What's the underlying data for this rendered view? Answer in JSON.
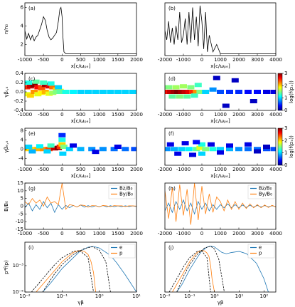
{
  "chart_data": [
    {
      "type": "line",
      "label": "(a)",
      "ylabel": "n/n₀",
      "xlabel": "x[c/ωₚₑ]",
      "xlim": [
        -1000,
        2000
      ],
      "xticks": [
        -1000,
        -500,
        0,
        500,
        1000,
        1500,
        2000
      ],
      "ylim": [
        0.8,
        6.5
      ],
      "yticks": [
        2,
        4,
        6
      ],
      "x": [
        -1000,
        -950,
        -900,
        -850,
        -800,
        -750,
        -700,
        -650,
        -600,
        -550,
        -500,
        -450,
        -400,
        -350,
        -300,
        -250,
        -200,
        -150,
        -100,
        -60,
        -30,
        0,
        20,
        50,
        100,
        200,
        500,
        1000,
        1500,
        2000
      ],
      "series": [
        {
          "color": "#000000",
          "values": [
            3.5,
            2.6,
            3.2,
            2.5,
            3.0,
            2.4,
            2.8,
            3.0,
            3.6,
            4.2,
            5.0,
            4.6,
            3.5,
            2.8,
            2.5,
            2.7,
            3.0,
            3.3,
            4.5,
            5.8,
            6.0,
            5.0,
            3.0,
            1.2,
            1.0,
            1.0,
            1.0,
            1.0,
            1.0,
            1.0
          ]
        }
      ]
    },
    {
      "type": "line",
      "label": "(b)",
      "xlabel": "x[c/ωₚₑ]",
      "xlim": [
        -2000,
        4000
      ],
      "xticks": [
        -2000,
        -1000,
        0,
        1000,
        2000,
        3000,
        4000
      ],
      "ylim": [
        0.8,
        6.5
      ],
      "x": [
        -2000,
        -1900,
        -1800,
        -1700,
        -1600,
        -1500,
        -1400,
        -1300,
        -1200,
        -1100,
        -1000,
        -900,
        -800,
        -700,
        -600,
        -500,
        -400,
        -300,
        -200,
        -100,
        0,
        100,
        200,
        300,
        400,
        600,
        800,
        1000,
        1500,
        2000,
        3000,
        4000
      ],
      "series": [
        {
          "color": "#000000",
          "values": [
            3.5,
            2.5,
            4.5,
            2.2,
            3.8,
            2.0,
            4.0,
            2.5,
            5.5,
            2.2,
            3.0,
            4.8,
            2.0,
            5.5,
            2.2,
            6.0,
            2.5,
            5.0,
            1.8,
            6.2,
            4.5,
            1.5,
            5.5,
            1.2,
            3.0,
            1.2,
            2.0,
            1.0,
            1.0,
            1.0,
            1.0,
            1.0
          ]
        }
      ]
    },
    {
      "type": "heatmap",
      "label": "(c)",
      "ylabel": "γβᵢ,ₓ",
      "xlabel": "x[c/ωₚₑ]",
      "xlim": [
        -1000,
        2000
      ],
      "xticks": [
        -1000,
        -500,
        0,
        500,
        1000,
        1500,
        2000
      ],
      "ylim": [
        -0.4,
        0.4
      ],
      "yticks": [
        -0.4,
        -0.2,
        {
          "value": 0,
          "label": "0.0"
        },
        0.2,
        0.4
      ],
      "x": [
        -950,
        -850,
        -750,
        -650,
        -550,
        -450,
        -350,
        -250,
        -150,
        -50,
        -950,
        -850,
        -750,
        -650,
        -550,
        -450,
        -350,
        -250,
        -150,
        -50,
        -900,
        -700,
        -500,
        -300,
        -100,
        100,
        300,
        500,
        700,
        900,
        1100,
        1300,
        1500,
        1700,
        1900
      ],
      "y": [
        0.1,
        0.12,
        0.15,
        0.1,
        0.08,
        0.15,
        0.12,
        0.1,
        0.05,
        0.02,
        -0.05,
        -0.08,
        0.0,
        -0.05,
        -0.02,
        0.0,
        -0.04,
        -0.02,
        0.0,
        0.0,
        0.2,
        0.22,
        0.2,
        0.18,
        0.1,
        0,
        0,
        0,
        0,
        0,
        0,
        0,
        0,
        0,
        0
      ],
      "values": [
        2.5,
        2.8,
        3,
        2.6,
        2.4,
        2.9,
        2.7,
        2.3,
        2,
        1.8,
        1.8,
        2,
        2.2,
        1.8,
        1.9,
        2.1,
        1.8,
        1.6,
        1.5,
        1.4,
        1.2,
        1.4,
        1.3,
        1.2,
        1,
        1.2,
        1.1,
        1,
        1,
        1,
        1,
        1,
        1,
        1,
        1
      ]
    },
    {
      "type": "heatmap",
      "label": "(d)",
      "xlabel": "x[c/ωₚₑ]",
      "xlim": [
        -2000,
        4000
      ],
      "xticks": [
        -2000,
        -1000,
        0,
        1000,
        2000,
        3000,
        4000
      ],
      "ylim": [
        -0.4,
        0.4
      ],
      "colorbar": {
        "label": "log(f(pₓ))",
        "lim": [
          0,
          3
        ],
        "ticks": [
          0,
          1,
          2,
          3
        ]
      },
      "x": [
        -1900,
        -1700,
        -1500,
        -1300,
        -1100,
        -900,
        -700,
        -500,
        -300,
        -100,
        -1800,
        -1400,
        -1000,
        -600,
        -200,
        -1600,
        -1200,
        -800,
        -400,
        200,
        600,
        1000,
        1500,
        2000,
        2500,
        3000,
        3500,
        3900,
        800,
        1800,
        2800,
        1300
      ],
      "y": [
        0,
        0,
        0,
        0,
        0,
        0,
        0,
        0,
        0,
        0,
        0.1,
        0.1,
        0.12,
        0.1,
        0.15,
        -0.1,
        -0.1,
        -0.1,
        -0.08,
        0,
        0.05,
        0,
        0,
        0,
        0,
        0,
        0,
        0,
        0.3,
        0.25,
        -0.2,
        -0.3
      ],
      "values": [
        2.6,
        2.8,
        2.9,
        3,
        2.9,
        2.8,
        2.7,
        2.5,
        2.2,
        1.5,
        1.5,
        1.6,
        1.6,
        1.5,
        1.3,
        1.4,
        1.5,
        1.4,
        1.3,
        1,
        0.8,
        0.6,
        0.5,
        0.5,
        0.4,
        0.4,
        0.3,
        0.3,
        0.2,
        0.2,
        0.2,
        0.2
      ]
    },
    {
      "type": "heatmap",
      "label": "(e)",
      "ylabel": "γβₑ,ₓ",
      "xlabel": "x[c/ωₚₑ]",
      "xlim": [
        -1000,
        2000
      ],
      "xticks": [
        -1000,
        -500,
        0,
        500,
        1000,
        1500,
        2000
      ],
      "ylim": [
        -7,
        9
      ],
      "yticks": [
        -4,
        0,
        4,
        8
      ],
      "x": [
        -950,
        -800,
        -650,
        -500,
        -350,
        -200,
        -100,
        -50,
        0,
        0,
        0,
        50,
        20,
        -900,
        -600,
        -300,
        -800,
        -400,
        200,
        500,
        800,
        1100,
        1400,
        1700,
        1950,
        300,
        900,
        1500
      ],
      "y": [
        0,
        0,
        0,
        0,
        0,
        0.3,
        0.5,
        1,
        2,
        4,
        6,
        1,
        -2,
        1,
        1.2,
        1.5,
        -1,
        -1,
        0,
        0,
        0,
        0,
        0,
        0,
        0,
        1.5,
        -1.2,
        1
      ],
      "values": [
        2,
        2,
        2.1,
        2.2,
        2.4,
        2.8,
        3,
        2.5,
        2,
        1.2,
        0.5,
        1.5,
        1,
        1,
        1.1,
        1.3,
        0.9,
        1,
        1,
        0.9,
        0.8,
        0.8,
        0.7,
        0.7,
        0.6,
        0.3,
        0.3,
        0.3
      ]
    },
    {
      "type": "heatmap",
      "label": "(f)",
      "xlabel": "x[c/ωₚₑ]",
      "xlim": [
        -2000,
        4000
      ],
      "xticks": [
        -2000,
        -1000,
        0,
        1000,
        2000,
        3000,
        4000
      ],
      "ylim": [
        -7,
        9
      ],
      "colorbar": {
        "label": "log(f(pₓ))",
        "lim": [
          0,
          3
        ],
        "ticks": [
          0,
          1,
          2,
          3
        ]
      },
      "x": [
        -1900,
        -1500,
        -1100,
        -700,
        -300,
        -100,
        0,
        0,
        200,
        600,
        1000,
        1500,
        2000,
        2500,
        3000,
        3500,
        3900,
        -1700,
        -900,
        -300,
        500,
        1500,
        2500,
        3500,
        -1300,
        -500,
        1000,
        3000
      ],
      "y": [
        0,
        0,
        0,
        0,
        0,
        0.5,
        2,
        -2,
        0,
        0,
        0,
        0,
        0,
        0,
        0,
        0,
        0,
        2,
        2.5,
        3,
        2,
        1.5,
        2,
        1,
        -2,
        -2.5,
        -1.5,
        -1
      ],
      "values": [
        0.8,
        0.9,
        1,
        1.1,
        1.4,
        1.8,
        1.2,
        1,
        1.5,
        1.2,
        1,
        0.9,
        0.8,
        0.7,
        0.7,
        0.6,
        0.6,
        0.3,
        0.3,
        0.4,
        0.3,
        0.3,
        0.3,
        0.2,
        0.3,
        0.3,
        0.3,
        0.2
      ]
    },
    {
      "type": "line",
      "label": "(g)",
      "ylabel": "B/B₀",
      "legend": "upper right",
      "xlim": [
        -1000,
        2000
      ],
      "xticks": [
        -1000,
        -500,
        0,
        500,
        1000,
        1500,
        2000
      ],
      "ylim": [
        -15,
        15
      ],
      "yticks": [
        -15,
        -10,
        -5,
        0,
        5,
        10,
        15
      ],
      "x": [
        -1000,
        -900,
        -800,
        -700,
        -600,
        -500,
        -400,
        -300,
        -200,
        -100,
        0,
        100,
        200,
        300,
        400,
        500,
        600,
        700,
        800,
        900,
        1000,
        1100,
        1200,
        1300,
        1400,
        1500,
        1600,
        1700,
        1800,
        1900,
        2000
      ],
      "series": [
        {
          "name": "Bz/B₀",
          "color": "#1f77b4",
          "values": [
            -1,
            2,
            -3,
            1,
            -2,
            3,
            -1,
            2,
            -4,
            1,
            -2,
            0.5,
            -1,
            0.5,
            -0.5,
            0.8,
            -0.6,
            0.4,
            -0.5,
            0.3,
            -0.3,
            0.4,
            -0.4,
            0.3,
            -0.3,
            0.2,
            -0.3,
            0.3,
            -0.2,
            0.2,
            -0.2
          ]
        },
        {
          "name": "By/B₀",
          "color": "#ff7f0e",
          "values": [
            3,
            1,
            5,
            2,
            4,
            0,
            6,
            2,
            3,
            1,
            15,
            -2,
            1,
            0.5,
            -0.5,
            0.8,
            0.5,
            -0.6,
            0.4,
            0.3,
            -0.4,
            0.5,
            0.2,
            -0.3,
            0.4,
            0.2,
            0.3,
            -0.2,
            0.3,
            0.2,
            0.1
          ]
        }
      ]
    },
    {
      "type": "line",
      "label": "(h)",
      "legend": "upper right",
      "xlim": [
        -2000,
        4000
      ],
      "xticks": [
        -2000,
        -1000,
        0,
        1000,
        2000,
        3000,
        4000
      ],
      "ylim": [
        -15,
        15
      ],
      "x": [
        -2000,
        -1800,
        -1600,
        -1400,
        -1200,
        -1000,
        -800,
        -600,
        -400,
        -200,
        0,
        200,
        400,
        600,
        800,
        1000,
        1200,
        1400,
        1600,
        1800,
        2000,
        2200,
        2400,
        2600,
        2800,
        3000,
        3200,
        3400,
        3600,
        3800,
        4000
      ],
      "series": [
        {
          "name": "Bz/B₀",
          "color": "#1f77b4",
          "values": [
            -3,
            2,
            -4,
            3,
            -2,
            4,
            -3,
            2,
            -5,
            3,
            -2,
            2,
            -3,
            1,
            -2,
            1,
            -1,
            1.5,
            -1,
            1,
            -1,
            0.8,
            -0.8,
            0.6,
            -0.6,
            0.5,
            -0.5,
            0.4,
            -0.4,
            0.3,
            -0.3
          ]
        },
        {
          "name": "By/B₀",
          "color": "#ff7f0e",
          "values": [
            10,
            -8,
            12,
            -10,
            14,
            -6,
            11,
            -12,
            15,
            -9,
            13,
            -5,
            8,
            -4,
            6,
            3,
            -3,
            4,
            -2,
            3,
            -2,
            2,
            -1.5,
            1.5,
            -1,
            1,
            -1,
            0.8,
            -0.8,
            0.6,
            -0.5
          ]
        }
      ]
    },
    {
      "type": "line",
      "label": "(i)",
      "ylabel": "p⁴f(p)",
      "xlabel": "γβ",
      "legend": "upper right",
      "xlog": true,
      "ylog": true,
      "xlim": [
        0.01,
        10
      ],
      "xticks": [
        {
          "value": 0.01,
          "label": "10⁻²"
        },
        {
          "value": 0.1,
          "label": "10⁻¹"
        },
        {
          "value": 1,
          "label": "10⁰"
        },
        {
          "value": 10,
          "label": "10¹"
        }
      ],
      "ylim": [
        1e-05,
        0.06
      ],
      "yticks": [
        {
          "value": 1e-05,
          "label": "10⁻⁵"
        },
        {
          "value": 0.001,
          "label": "10⁻³"
        }
      ],
      "series": [
        {
          "name": "e",
          "color": "#1f77b4",
          "x": [
            0.03,
            0.05,
            0.1,
            0.2,
            0.3,
            0.5,
            0.7,
            1,
            2,
            3,
            5,
            10
          ],
          "values": [
            1e-05,
            5e-05,
            0.0006,
            0.004,
            0.012,
            0.025,
            0.028,
            0.022,
            0.006,
            0.0015,
            0.0002,
            1e-05
          ]
        },
        {
          "name": "p",
          "color": "#ff7f0e",
          "x": [
            0.02,
            0.05,
            0.1,
            0.2,
            0.3,
            0.4,
            0.5,
            0.6,
            0.7,
            0.8
          ],
          "values": [
            1e-05,
            0.0002,
            0.002,
            0.01,
            0.014,
            0.012,
            0.007,
            0.002,
            0.0003,
            1e-05
          ]
        },
        {
          "color": "#000000",
          "dashed": true,
          "x": [
            0.03,
            0.06,
            0.1,
            0.2,
            0.4,
            0.65,
            1,
            1.5,
            2
          ],
          "values": [
            1e-05,
            0.0002,
            0.0012,
            0.007,
            0.02,
            0.027,
            0.015,
            0.002,
            1e-05
          ]
        },
        {
          "color": "#000000",
          "dashed": true,
          "x": [
            0.015,
            0.03,
            0.06,
            0.1,
            0.2,
            0.3,
            0.5,
            0.7
          ],
          "values": [
            1e-05,
            0.0001,
            0.001,
            0.004,
            0.012,
            0.014,
            0.004,
            1e-05
          ]
        }
      ]
    },
    {
      "type": "line",
      "label": "(j)",
      "xlabel": "γβ",
      "legend": "upper right",
      "xlog": true,
      "ylog": true,
      "xlim": [
        0.01,
        300
      ],
      "xticks": [
        {
          "value": 0.01,
          "label": "10⁻²"
        },
        {
          "value": 0.1,
          "label": "10⁻¹"
        },
        {
          "value": 1,
          "label": "10⁰"
        },
        {
          "value": 10,
          "label": "10¹"
        },
        {
          "value": 100,
          "label": "10²"
        }
      ],
      "ylim": [
        1e-05,
        0.06
      ],
      "series": [
        {
          "name": "e",
          "color": "#1f77b4",
          "x": [
            0.03,
            0.05,
            0.1,
            0.2,
            0.3,
            0.5,
            0.7,
            1,
            2,
            3,
            5,
            10,
            20,
            50,
            100,
            150
          ],
          "values": [
            1e-05,
            4e-05,
            0.0005,
            0.004,
            0.012,
            0.025,
            0.03,
            0.026,
            0.01,
            0.008,
            0.01,
            0.012,
            0.008,
            0.0015,
            0.0001,
            1e-05
          ]
        },
        {
          "name": "p",
          "color": "#ff7f0e",
          "x": [
            0.02,
            0.05,
            0.1,
            0.2,
            0.3,
            0.4,
            0.5,
            0.6,
            0.7,
            0.8,
            1
          ],
          "values": [
            1e-05,
            0.0002,
            0.002,
            0.01,
            0.014,
            0.013,
            0.009,
            0.005,
            0.001,
            0.0001,
            1e-05
          ]
        },
        {
          "color": "#000000",
          "dashed": true,
          "x": [
            0.03,
            0.06,
            0.1,
            0.2,
            0.4,
            0.7,
            1,
            1.5,
            2.5
          ],
          "values": [
            1e-05,
            0.0002,
            0.0012,
            0.007,
            0.022,
            0.03,
            0.018,
            0.003,
            1e-05
          ]
        },
        {
          "color": "#000000",
          "dashed": true,
          "x": [
            0.015,
            0.03,
            0.06,
            0.1,
            0.2,
            0.3,
            0.5,
            0.7
          ],
          "values": [
            1e-05,
            0.0001,
            0.001,
            0.004,
            0.012,
            0.014,
            0.004,
            1e-05
          ]
        }
      ]
    }
  ]
}
